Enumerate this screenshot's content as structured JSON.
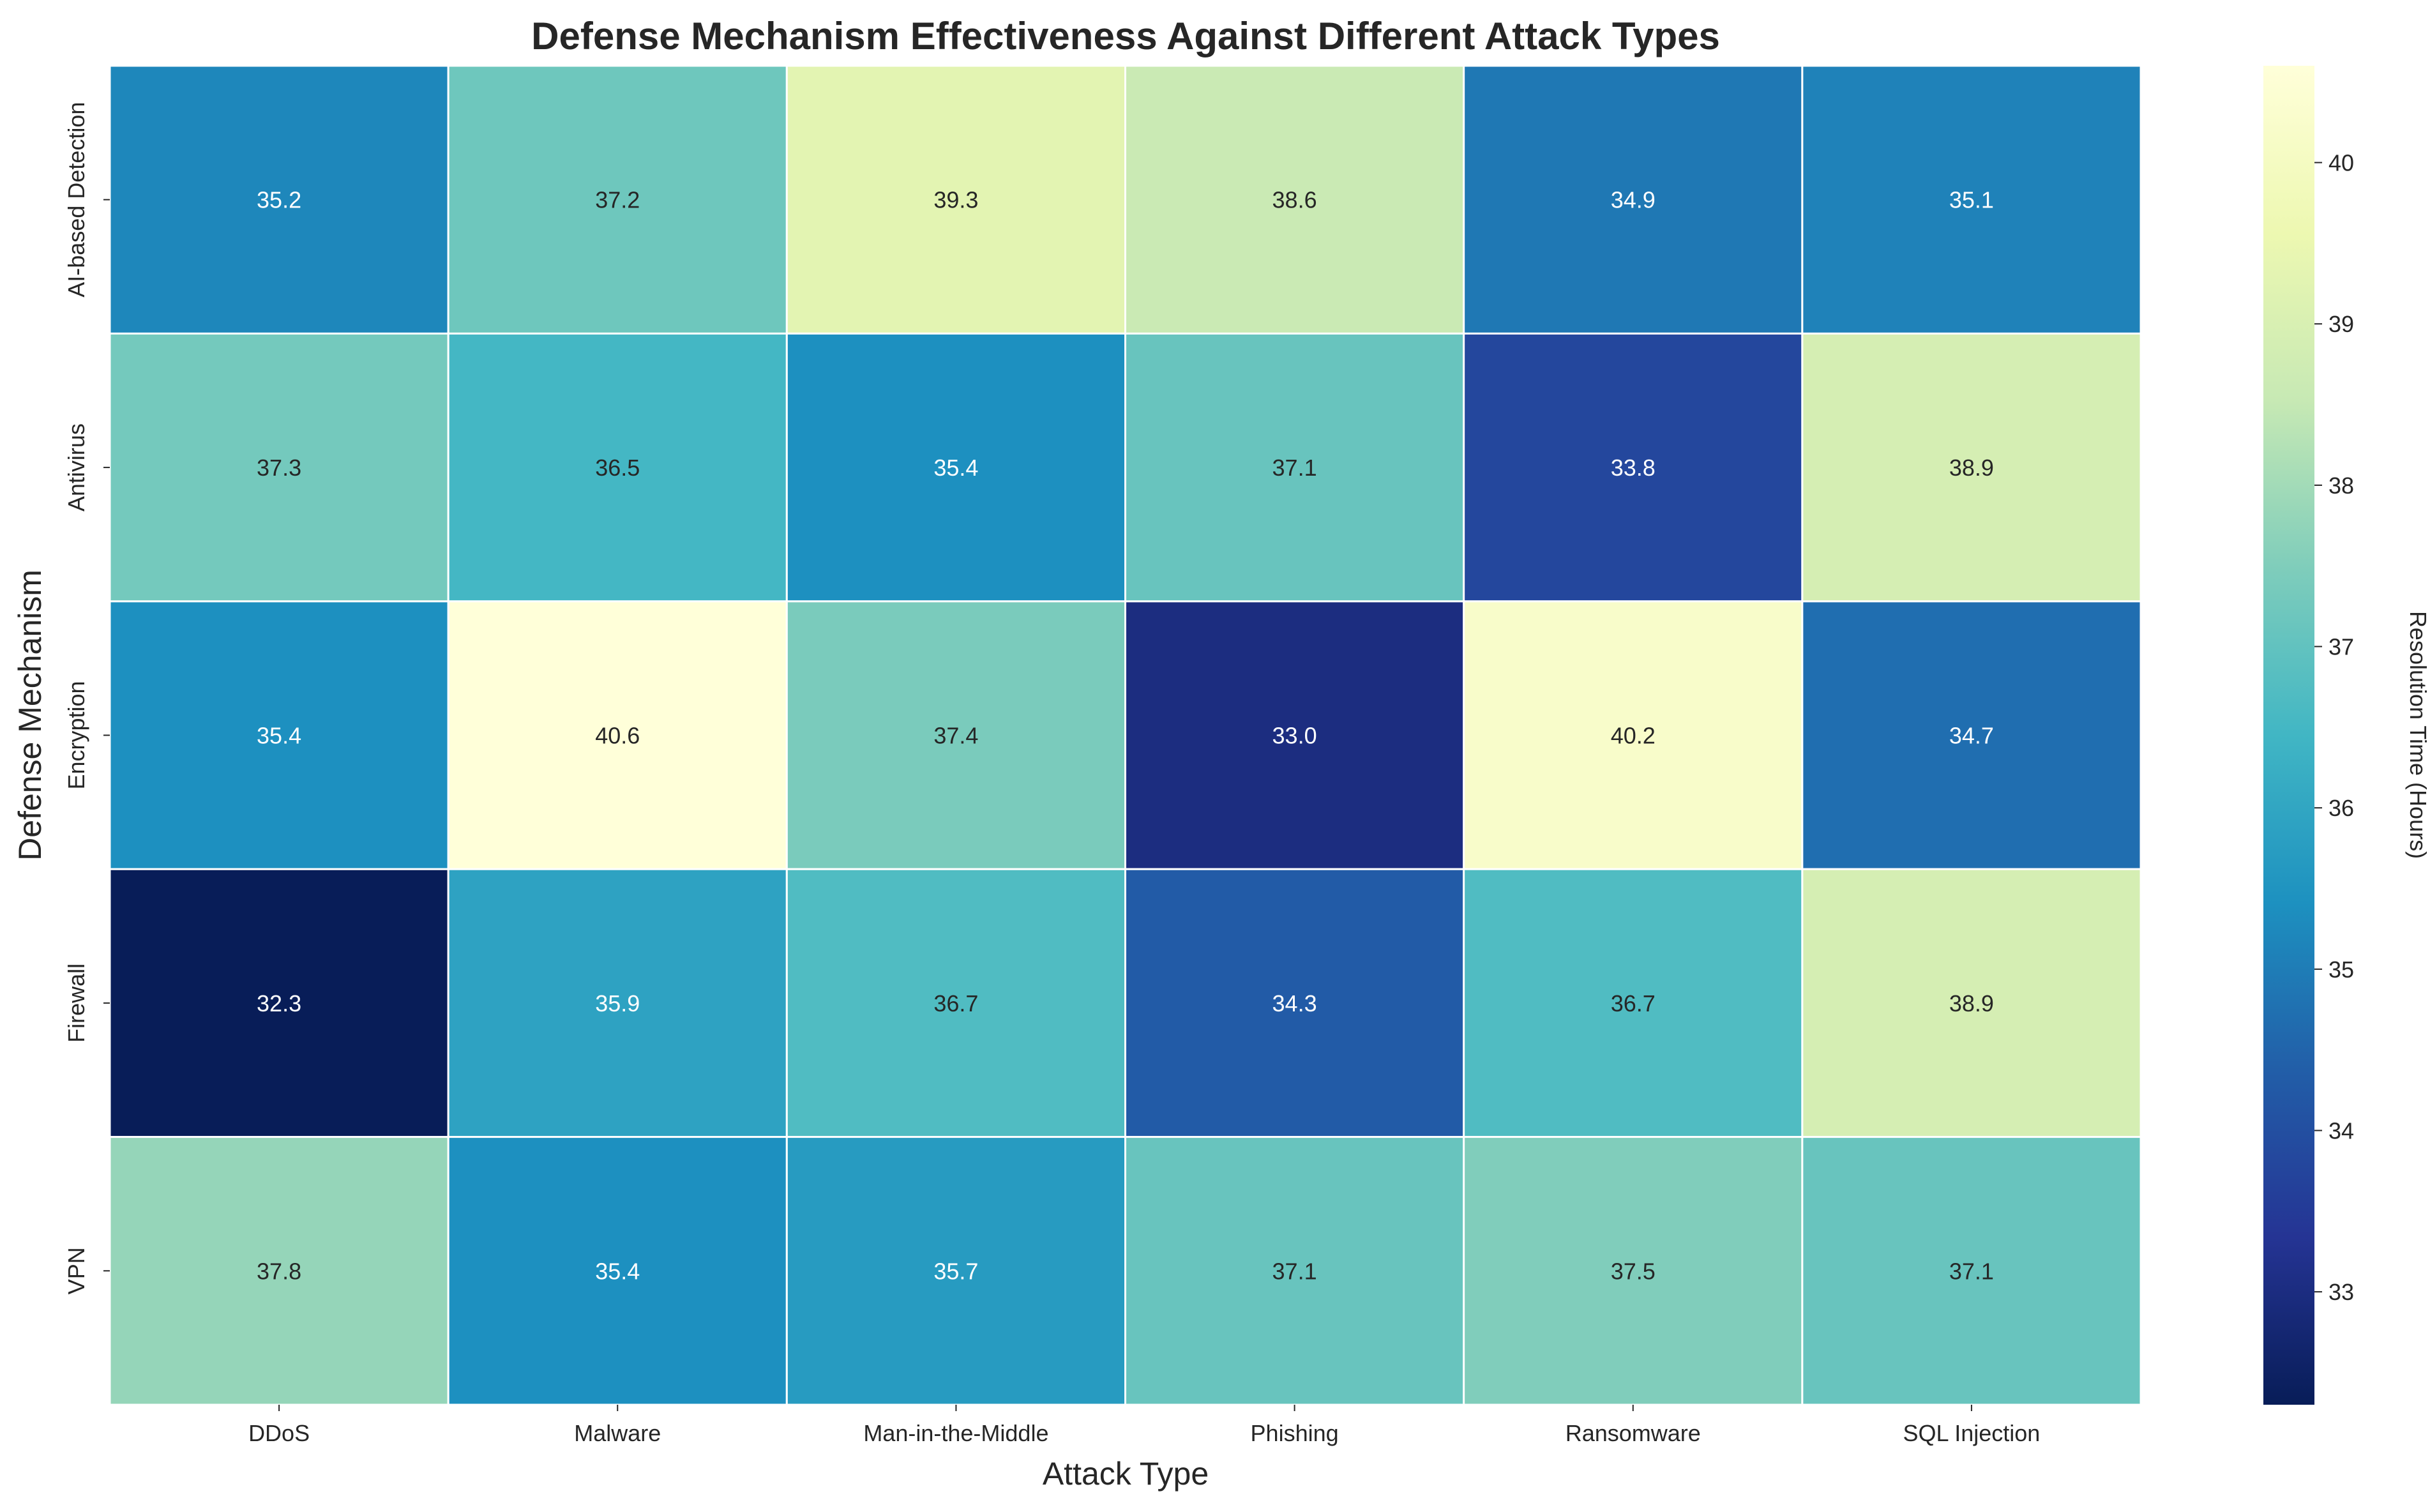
{
  "chart_data": {
    "type": "heatmap",
    "title": "Defense Mechanism Effectiveness Against Different Attack Types",
    "xlabel": "Attack Type",
    "ylabel": "Defense Mechanism",
    "x_categories": [
      "DDoS",
      "Malware",
      "Man-in-the-Middle",
      "Phishing",
      "Ransomware",
      "SQL Injection"
    ],
    "y_categories": [
      "AI-based Detection",
      "Antivirus",
      "Encryption",
      "Firewall",
      "VPN"
    ],
    "values": [
      [
        35.2,
        37.2,
        39.3,
        38.6,
        34.9,
        35.1
      ],
      [
        37.3,
        36.5,
        35.4,
        37.1,
        33.8,
        38.9
      ],
      [
        35.4,
        40.6,
        37.4,
        33.0,
        40.2,
        34.7
      ],
      [
        32.3,
        35.9,
        36.7,
        34.3,
        36.7,
        38.9
      ],
      [
        37.8,
        35.4,
        35.7,
        37.1,
        37.5,
        37.1
      ]
    ],
    "colorbar": {
      "label": "Resolution Time (Hours)",
      "range": [
        32.3,
        40.6
      ],
      "ticks": [
        "33",
        "34",
        "35",
        "36",
        "37",
        "38",
        "39",
        "40"
      ],
      "colormap": "YlGnBu_r"
    }
  }
}
